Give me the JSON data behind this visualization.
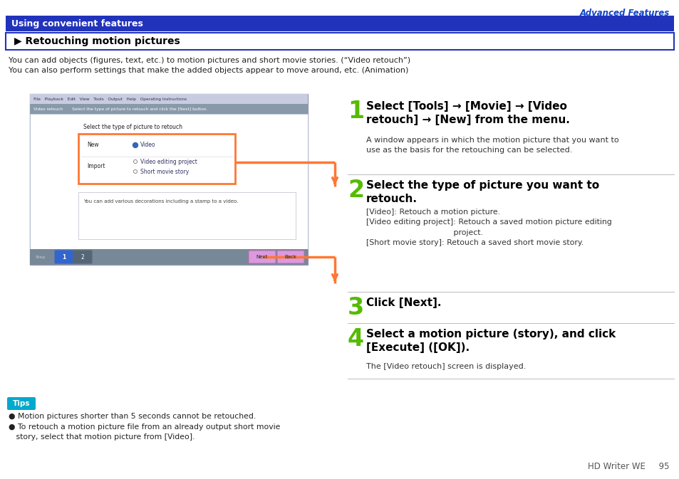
{
  "page_title": "Advanced Features",
  "header_bg": "#2233BB",
  "header_text": "Using convenient features",
  "subheader_text": "▶ Retouching motion pictures",
  "subheader_border": "#2233BB",
  "intro_line1": "You can add objects (figures, text, etc.) to motion pictures and short movie stories. (“Video retouch”)",
  "intro_line2": "You can also perform settings that make the added objects appear to move around, etc. (Animation)",
  "steps": [
    {
      "num": "1",
      "heading": "Select [Tools] → [Movie] → [Video\nretouch] → [New] from the menu.",
      "body": "A window appears in which the motion picture that you want to\nuse as the basis for the retouching can be selected."
    },
    {
      "num": "2",
      "heading": "Select the type of picture you want to\nretouch.",
      "body": "[Video]: Retouch a motion picture.\n[Video editing project]: Retouch a saved motion picture editing\n                                   project.\n[Short movie story]: Retouch a saved short movie story."
    },
    {
      "num": "3",
      "heading": "Click [Next].",
      "body": ""
    },
    {
      "num": "4",
      "heading": "Select a motion picture (story), and click\n[Execute] ([OK]).",
      "body": "The [Video retouch] screen is displayed."
    }
  ],
  "tips_title": "Tips",
  "tips_bg": "#00AACC",
  "tips_lines": [
    "● Motion pictures shorter than 5 seconds cannot be retouched.",
    "● To retouch a motion picture file from an already output short movie\n   story, select that motion picture from [Video]."
  ],
  "footer": "HD Writer WE     95",
  "step_color": "#55BB00",
  "orange_color": "#FF7733",
  "bg_color": "#FFFFFF"
}
